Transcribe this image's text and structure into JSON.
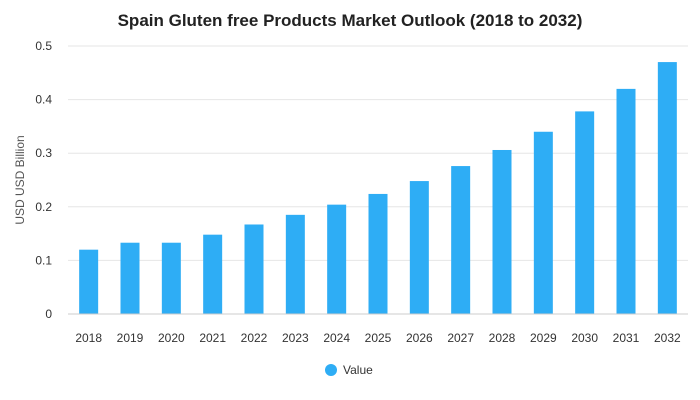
{
  "chart_data": {
    "type": "bar",
    "title": "Spain Gluten free Products Market Outlook (2018 to 2032)",
    "xlabel": "",
    "ylabel": "USD USD Billion",
    "categories": [
      "2018",
      "2019",
      "2020",
      "2021",
      "2022",
      "2023",
      "2024",
      "2025",
      "2026",
      "2027",
      "2028",
      "2029",
      "2030",
      "2031",
      "2032"
    ],
    "series": [
      {
        "name": "Value",
        "values": [
          0.12,
          0.133,
          0.133,
          0.148,
          0.167,
          0.185,
          0.204,
          0.224,
          0.248,
          0.276,
          0.306,
          0.34,
          0.378,
          0.42,
          0.47
        ],
        "color": "#2EADF5"
      }
    ],
    "ylim": [
      0,
      0.5
    ],
    "yticks": [
      "0",
      "0.1",
      "0.2",
      "0.3",
      "0.4",
      "0.5"
    ],
    "grid": true,
    "legend_position": "bottom-center"
  }
}
